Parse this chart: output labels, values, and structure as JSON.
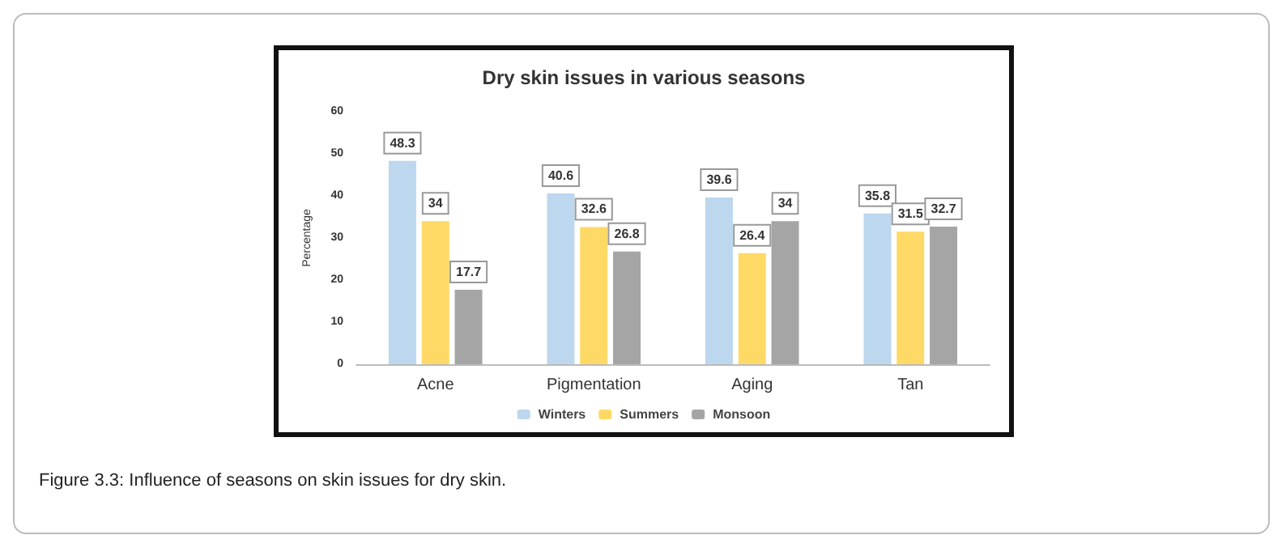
{
  "chart_data": {
    "type": "bar",
    "title": "Dry skin issues in various seasons",
    "ylabel": "Percentage",
    "categories": [
      "Acne",
      "Pigmentation",
      "Aging",
      "Tan"
    ],
    "series": [
      {
        "name": "Winters",
        "color": "#bdd7ee",
        "values": [
          48.3,
          40.6,
          39.6,
          35.8
        ]
      },
      {
        "name": "Summers",
        "color": "#ffd966",
        "values": [
          34,
          32.6,
          26.4,
          31.5
        ]
      },
      {
        "name": "Monsoon",
        "color": "#a5a5a5",
        "values": [
          17.7,
          26.8,
          34,
          32.7
        ]
      }
    ],
    "ylim": [
      0,
      60
    ],
    "yticks": [
      0,
      10,
      20,
      30,
      40,
      50,
      60
    ],
    "grid": false,
    "legend": "bottom",
    "data_labels": true,
    "annotations": [
      "Figure 3.3: Influence of seasons on skin issues for dry skin."
    ]
  }
}
